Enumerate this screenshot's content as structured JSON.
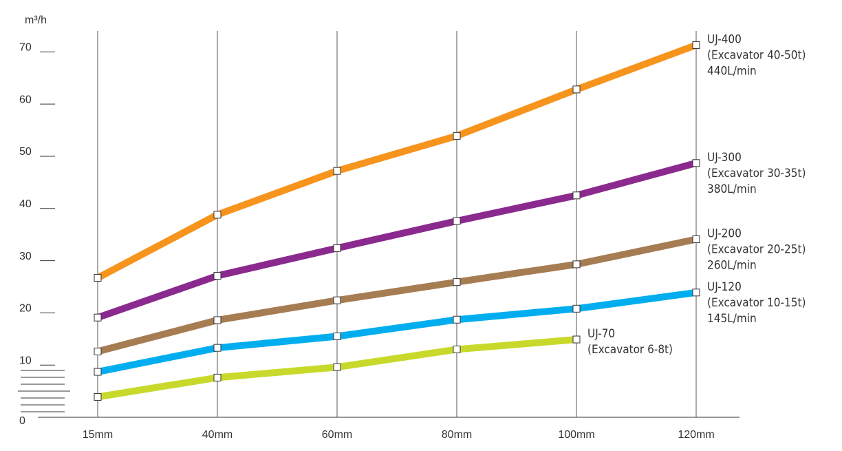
{
  "chart_data": {
    "type": "line",
    "y_label": "m³/h",
    "categories": [
      "15mm",
      "40mm",
      "60mm",
      "80mm",
      "100mm",
      "120mm"
    ],
    "ylim": [
      0,
      74
    ],
    "yticks": [
      0,
      10,
      20,
      30,
      40,
      50,
      60,
      70
    ],
    "grid": true,
    "series": [
      {
        "name": "UJ-400",
        "description": [
          "(Excavator 40-50t)",
          "440L/min"
        ],
        "color": "#f7941d",
        "values": [
          26.7,
          38.8,
          47.2,
          53.9,
          62.8,
          71.3
        ]
      },
      {
        "name": "UJ-300",
        "description": [
          "(Excavator 30-35t)",
          "380L/min"
        ],
        "color": "#8b2a8e",
        "values": [
          19.1,
          27.1,
          32.4,
          37.6,
          42.5,
          48.7
        ]
      },
      {
        "name": "UJ-200",
        "description": [
          "(Excavator 20-25t)",
          "260L/min"
        ],
        "color": "#a67c52",
        "values": [
          12.6,
          18.6,
          22.4,
          25.9,
          29.3,
          34.1
        ]
      },
      {
        "name": "UJ-120",
        "description": [
          "(Excavator 10-15t)",
          "145L/min"
        ],
        "color": "#00aeef",
        "values": [
          8.7,
          13.3,
          15.5,
          18.7,
          20.8,
          23.9
        ]
      },
      {
        "name": "UJ-70",
        "description": [
          "(Excavator 6-8t)"
        ],
        "color": "#c9d92b",
        "values": [
          3.9,
          7.6,
          9.6,
          13.0,
          14.9,
          null
        ]
      }
    ]
  }
}
